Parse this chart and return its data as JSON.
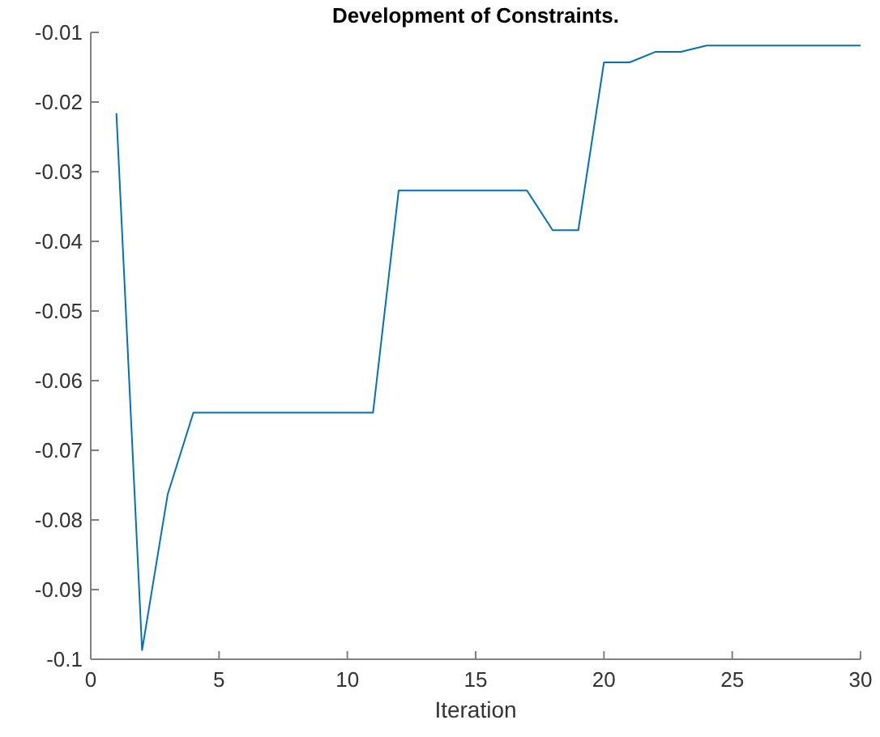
{
  "chart_data": {
    "type": "line",
    "title": "Development of Constraints.",
    "xlabel": "Iteration",
    "x": [
      1,
      2,
      3,
      4,
      5,
      6,
      7,
      8,
      9,
      10,
      11,
      12,
      13,
      14,
      15,
      16,
      17,
      18,
      19,
      20,
      21,
      22,
      23,
      24,
      25,
      26,
      27,
      28,
      29,
      30
    ],
    "series": [
      {
        "color": "#0072bd",
        "values": [
          -0.0216,
          -0.0987,
          -0.0763,
          -0.0646,
          -0.0646,
          -0.0646,
          -0.0646,
          -0.0646,
          -0.0646,
          -0.0646,
          -0.0646,
          -0.0327,
          -0.0327,
          -0.0327,
          -0.0327,
          -0.0327,
          -0.0327,
          -0.0384,
          -0.0384,
          -0.0143,
          -0.0143,
          -0.0128,
          -0.0128,
          -0.0119,
          -0.0119,
          -0.0119,
          -0.0119,
          -0.0119,
          -0.0119,
          -0.0119
        ]
      }
    ],
    "xlim": [
      0,
      30
    ],
    "xticks": [
      0,
      5,
      10,
      15,
      20,
      25,
      30
    ],
    "ylim": [
      -0.1,
      -0.01
    ],
    "yticks": [
      -0.1,
      -0.09,
      -0.08,
      -0.07,
      -0.06,
      -0.05,
      -0.04,
      -0.03,
      -0.02,
      -0.01
    ],
    "grid": false,
    "marker": "none",
    "line_style": "solid"
  }
}
